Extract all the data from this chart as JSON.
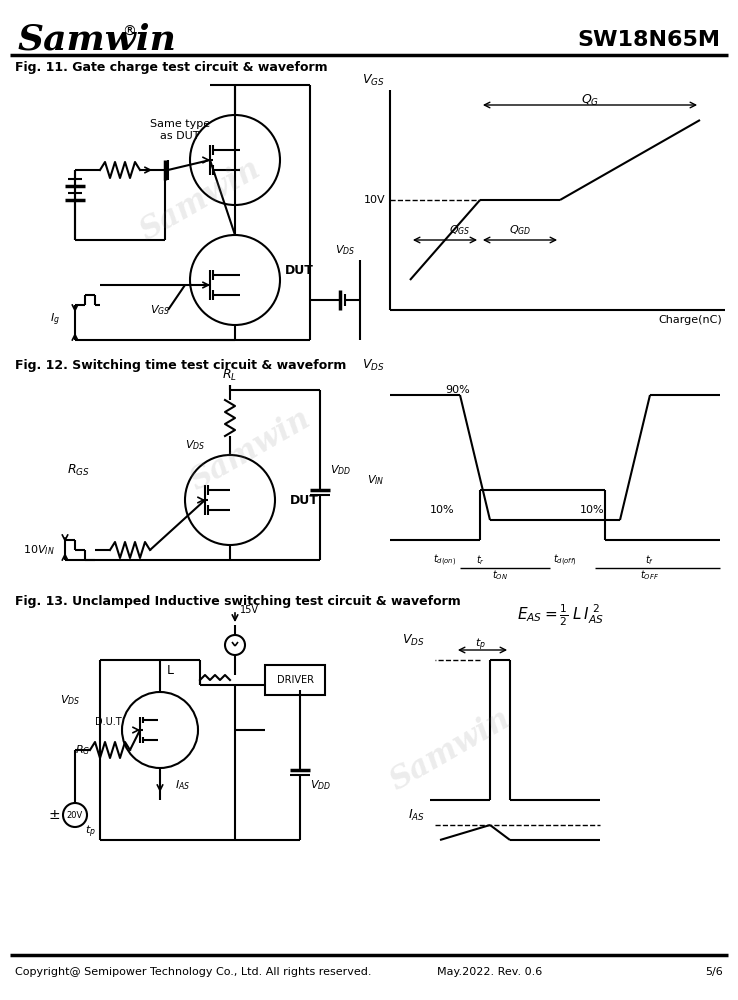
{
  "title_company": "Samwin",
  "title_part": "SW18N65M",
  "fig11_title": "Fig. 11. Gate charge test circuit & waveform",
  "fig12_title": "Fig. 12. Switching time test circuit & waveform",
  "fig13_title": "Fig. 13. Unclamped Inductive switching test circuit & waveform",
  "footer_left": "Copyright@ Semipower Technology Co., Ltd. All rights reserved.",
  "footer_mid": "May.2022. Rev. 0.6",
  "footer_right": "5/6",
  "bg_color": "#ffffff",
  "line_color": "#000000"
}
